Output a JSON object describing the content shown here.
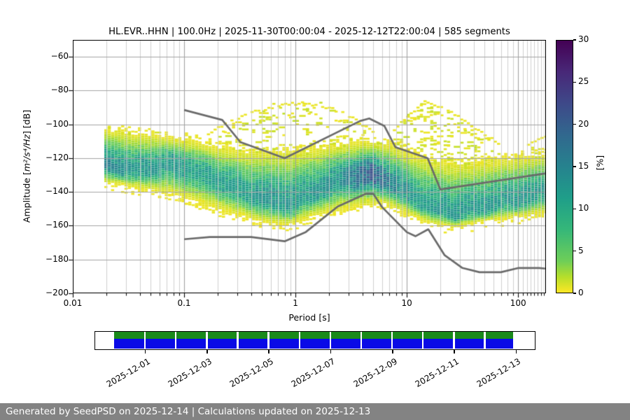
{
  "chart_data": {
    "type": "heatmap",
    "title": "HL.EVR..HHN | 100.0Hz | 2025-11-30T00:00:04 - 2025-12-12T22:00:04 | 585 segments",
    "xlabel": "Period [s]",
    "ylabel": "Amplitude [m²/s⁴/Hz] [dB]",
    "ylabel_parts": {
      "prefix": "Amplitude [",
      "math": "m²/s⁴/Hz",
      "suffix": "] [dB]"
    },
    "xscale": "log",
    "xlim": [
      0.01,
      178
    ],
    "ylim": [
      -200,
      -50
    ],
    "xticks": [
      0.01,
      0.1,
      1,
      10,
      100
    ],
    "yticks": [
      -60,
      -80,
      -100,
      -120,
      -140,
      -160,
      -180,
      -200
    ],
    "grid": true,
    "colorbar": {
      "label": "[%]",
      "range": [
        0,
        30
      ],
      "ticks": [
        0,
        5,
        10,
        15,
        20,
        25,
        30
      ],
      "colormap": "viridis reversed (0%=yellow, 30%=dark purple)"
    },
    "density_band": {
      "description": "PPSD probability cloud: [period_s, mode_dB, upper_dB, lower_dB, peak_percent]",
      "points": [
        [
          0.02,
          -124,
          -106,
          -133,
          16
        ],
        [
          0.035,
          -128,
          -108,
          -136,
          13
        ],
        [
          0.08,
          -123,
          -110,
          -139,
          13
        ],
        [
          0.12,
          -127,
          -112,
          -143,
          12
        ],
        [
          0.2,
          -133,
          -116,
          -148,
          12
        ],
        [
          0.35,
          -141,
          -119,
          -153,
          12
        ],
        [
          0.6,
          -145,
          -120,
          -157,
          14
        ],
        [
          0.9,
          -147,
          -120,
          -158,
          13
        ],
        [
          1.4,
          -141,
          -118,
          -153,
          13
        ],
        [
          2.5,
          -133,
          -115,
          -148,
          14
        ],
        [
          4,
          -130,
          -114,
          -145,
          20
        ],
        [
          5,
          -130,
          -114,
          -144,
          22
        ],
        [
          6.5,
          -133,
          -115,
          -145,
          18
        ],
        [
          9,
          -139,
          -118,
          -150,
          14
        ],
        [
          13,
          -146,
          -122,
          -155,
          12
        ],
        [
          18,
          -151,
          -125,
          -158,
          13
        ],
        [
          28,
          -153,
          -127,
          -160,
          13
        ],
        [
          45,
          -150,
          -126,
          -157,
          13
        ],
        [
          70,
          -147,
          -124,
          -155,
          13
        ],
        [
          110,
          -144,
          -122,
          -153,
          13
        ],
        [
          178,
          -140,
          -121,
          -151,
          13
        ]
      ]
    },
    "outlier_arcs": [
      [
        [
          0.16,
          -106
        ],
        [
          0.25,
          -99
        ],
        [
          0.4,
          -93
        ],
        [
          0.7,
          -89
        ],
        [
          1.1,
          -87.5
        ],
        [
          1.6,
          -88.5
        ],
        [
          2.2,
          -91
        ],
        [
          3,
          -95
        ],
        [
          4,
          -100
        ],
        [
          5,
          -105
        ]
      ],
      [
        [
          7.5,
          -105
        ],
        [
          10,
          -96
        ],
        [
          13,
          -89
        ],
        [
          15,
          -87.5
        ],
        [
          19,
          -89
        ],
        [
          25,
          -93
        ],
        [
          35,
          -99
        ],
        [
          50,
          -106
        ],
        [
          70,
          -112
        ]
      ],
      [
        [
          120,
          -113
        ],
        [
          150,
          -109
        ],
        [
          178,
          -107
        ]
      ]
    ],
    "noise_models": {
      "high_noise_model": [
        [
          0.1,
          -91.5
        ],
        [
          0.22,
          -97.4
        ],
        [
          0.32,
          -110.5
        ],
        [
          0.8,
          -120
        ],
        [
          3.8,
          -98
        ],
        [
          4.6,
          -96.5
        ],
        [
          6.3,
          -101
        ],
        [
          7.9,
          -113.5
        ],
        [
          15.4,
          -120
        ],
        [
          20,
          -138.5
        ],
        [
          178,
          -129
        ]
      ],
      "low_noise_model": [
        [
          0.1,
          -168
        ],
        [
          0.17,
          -166.7
        ],
        [
          0.4,
          -166.7
        ],
        [
          0.8,
          -169.2
        ],
        [
          1.24,
          -163.7
        ],
        [
          2.4,
          -148.6
        ],
        [
          4.3,
          -141.1
        ],
        [
          5,
          -141.1
        ],
        [
          6,
          -149
        ],
        [
          10,
          -163.8
        ],
        [
          12,
          -166.2
        ],
        [
          15.6,
          -162.1
        ],
        [
          21.9,
          -177.5
        ],
        [
          31.6,
          -185
        ],
        [
          45,
          -187.5
        ],
        [
          70,
          -187.5
        ],
        [
          101,
          -185
        ],
        [
          154,
          -185
        ],
        [
          178,
          -185.4
        ]
      ],
      "color": "#6a6a6a"
    }
  },
  "timeline": {
    "start": "2025-11-30T00:00:04",
    "end": "2025-12-12T22:00:04",
    "tick_labels": [
      "2025-12-01",
      "2025-12-03",
      "2025-12-05",
      "2025-12-07",
      "2025-12-09",
      "2025-12-11",
      "2025-12-13"
    ],
    "colors": {
      "top_strip": "#1a8a1a",
      "bottom_strip": "#0a0ae6"
    }
  },
  "footer": {
    "text": "Generated by SeedPSD on 2025-12-14 | Calculations updated on 2025-12-13",
    "background": "#838383"
  }
}
